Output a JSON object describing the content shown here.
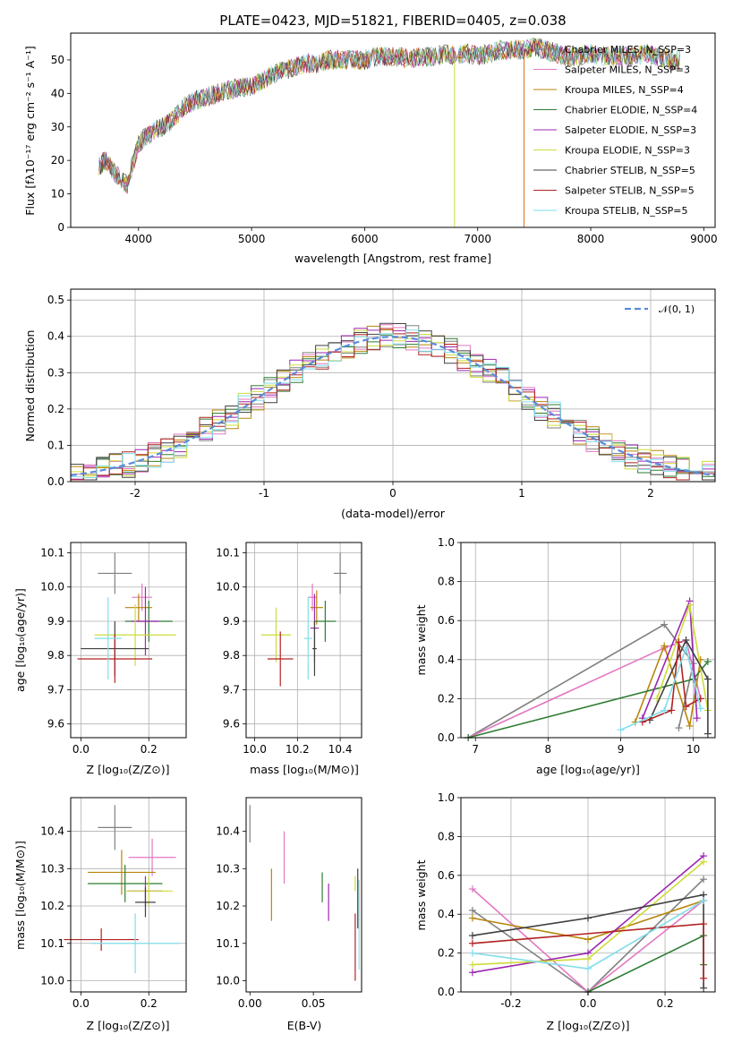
{
  "title": "PLATE=0423, MJD=51821, FIBERID=0405, z=0.038",
  "colors": [
    "#808080",
    "#e377c2",
    "#b8860b",
    "#2e7d32",
    "#9c27b0",
    "#cddc39",
    "#404040",
    "#b22222",
    "#80deea"
  ],
  "chart_data": [
    {
      "id": "spectrum",
      "type": "line",
      "xlabel": "wavelength [Angstrom, rest frame]",
      "ylabel": "Flux [fλ10⁻¹⁷ erg cm⁻² s⁻¹ A⁻¹]",
      "xlim": [
        3400,
        9100
      ],
      "ylim": [
        0,
        58
      ],
      "xticks": [
        4000,
        5000,
        6000,
        7000,
        8000,
        9000
      ],
      "yticks": [
        0,
        10,
        20,
        30,
        40,
        50
      ],
      "legend_position": "right",
      "series": [
        {
          "name": "Chabrier MILES, N_SSP=3"
        },
        {
          "name": "Salpeter MILES, N_SSP=3"
        },
        {
          "name": "Kroupa MILES, N_SSP=4"
        },
        {
          "name": "Chabrier ELODIE, N_SSP=4"
        },
        {
          "name": "Salpeter ELODIE, N_SSP=3"
        },
        {
          "name": "Kroupa ELODIE, N_SSP=3"
        },
        {
          "name": "Chabrier STELIB, N_SSP=5"
        },
        {
          "name": "Salpeter STELIB, N_SSP=5"
        },
        {
          "name": "Kroupa STELIB, N_SSP=5"
        }
      ],
      "x": [
        3650,
        3700,
        3800,
        3900,
        4000,
        4100,
        4200,
        4300,
        4400,
        4500,
        4600,
        4700,
        4800,
        4900,
        5000,
        5100,
        5200,
        5300,
        5400,
        5500,
        5600,
        5700,
        5800,
        5900,
        6000,
        6100,
        6200,
        6300,
        6400,
        6500,
        6600,
        6700,
        6800,
        6900,
        7000,
        7100,
        7200,
        7300,
        7400,
        7500,
        7600,
        7700,
        7800,
        7900,
        8000,
        8100,
        8200,
        8300,
        8400,
        8500,
        8600,
        8700,
        8800
      ],
      "y": [
        18,
        20,
        16,
        13,
        25,
        28,
        30,
        32,
        36,
        38,
        39,
        40,
        41,
        42,
        42,
        44,
        46,
        47,
        48,
        49,
        49,
        50,
        50,
        50,
        50,
        51,
        51,
        51,
        50,
        51,
        51,
        52,
        51,
        52,
        51,
        52,
        53,
        53,
        53,
        54,
        53,
        52,
        51,
        51,
        52,
        51,
        51,
        51,
        51,
        52,
        51,
        50,
        50
      ]
    },
    {
      "id": "residuals",
      "type": "histogram",
      "xlabel": "(data-model)/error",
      "ylabel": "Normed distribution",
      "xlim": [
        -2.5,
        2.5
      ],
      "ylim": [
        0,
        0.53
      ],
      "xticks": [
        -2,
        -1,
        0,
        1,
        2
      ],
      "yticks": [
        0.0,
        0.1,
        0.2,
        0.3,
        0.4,
        0.5
      ],
      "legend": "𝒩(0, 1)",
      "legend_position": "top-right",
      "grid": true
    },
    {
      "id": "age_vs_Z",
      "type": "scatter",
      "xlabel": "Z [log₁₀(Z/Z⊙)]",
      "ylabel": "age  [log₁₀(age/yr)]",
      "xlim": [
        -0.03,
        0.31
      ],
      "ylim": [
        9.56,
        10.13
      ],
      "xticks": [
        0.0,
        0.2
      ],
      "yticks": [
        9.6,
        9.7,
        9.8,
        9.9,
        10.0,
        10.1
      ],
      "points": [
        {
          "x": 0.1,
          "y": 10.04,
          "xerr": 0.05,
          "yerr": 0.06
        },
        {
          "x": 0.18,
          "y": 9.97,
          "xerr": 0.03,
          "yerr": 0.04
        },
        {
          "x": 0.17,
          "y": 9.94,
          "xerr": 0.04,
          "yerr": 0.04
        },
        {
          "x": 0.2,
          "y": 9.9,
          "xerr": 0.07,
          "yerr": 0.06
        },
        {
          "x": 0.19,
          "y": 9.9,
          "xerr": 0.04,
          "yerr": 0.1
        },
        {
          "x": 0.16,
          "y": 9.86,
          "xerr": 0.12,
          "yerr": 0.09
        },
        {
          "x": 0.1,
          "y": 9.82,
          "xerr": 0.1,
          "yerr": 0.08
        },
        {
          "x": 0.1,
          "y": 9.79,
          "xerr": 0.11,
          "yerr": 0.07
        },
        {
          "x": 0.08,
          "y": 9.85,
          "xerr": 0.04,
          "yerr": 0.12
        }
      ],
      "grid": true
    },
    {
      "id": "age_vs_mass",
      "type": "scatter",
      "xlabel": "mass [log₁₀(M/M⊙)]",
      "ylabel": "",
      "xlim": [
        9.96,
        10.5
      ],
      "ylim": [
        9.56,
        10.13
      ],
      "xticks": [
        10.0,
        10.2,
        10.4
      ],
      "yticks": [
        9.6,
        9.7,
        9.8,
        9.9,
        10.0,
        10.1
      ],
      "points": [
        {
          "x": 10.4,
          "y": 10.04,
          "xerr": 0.03,
          "yerr": 0.06
        },
        {
          "x": 10.27,
          "y": 9.97,
          "xerr": 0.02,
          "yerr": 0.04
        },
        {
          "x": 10.29,
          "y": 9.94,
          "xerr": 0.03,
          "yerr": 0.05
        },
        {
          "x": 10.33,
          "y": 9.9,
          "xerr": 0.05,
          "yerr": 0.06
        },
        {
          "x": 10.28,
          "y": 9.88,
          "xerr": 0.02,
          "yerr": 0.1
        },
        {
          "x": 10.1,
          "y": 9.86,
          "xerr": 0.07,
          "yerr": 0.08
        },
        {
          "x": 10.28,
          "y": 9.82,
          "xerr": 0.01,
          "yerr": 0.08
        },
        {
          "x": 10.12,
          "y": 9.79,
          "xerr": 0.06,
          "yerr": 0.08
        },
        {
          "x": 10.25,
          "y": 9.85,
          "xerr": 0.02,
          "yerr": 0.12
        }
      ],
      "grid": true
    },
    {
      "id": "mass_weight_vs_age",
      "type": "line",
      "xlabel": "age  [log₁₀(age/yr)]",
      "ylabel": "mass weight",
      "xlim": [
        6.8,
        10.3
      ],
      "ylim": [
        0,
        1.0
      ],
      "xticks": [
        7,
        8,
        9,
        10
      ],
      "yticks": [
        0.0,
        0.2,
        0.4,
        0.6,
        0.8,
        1.0
      ],
      "grid": true
    },
    {
      "id": "mass_vs_Z",
      "type": "scatter",
      "xlabel": "Z [log₁₀(Z/Z⊙)]",
      "ylabel": "mass [log₁₀(M/M⊙)]",
      "xlim": [
        -0.03,
        0.31
      ],
      "ylim": [
        9.97,
        10.49
      ],
      "xticks": [
        0.0,
        0.2
      ],
      "yticks": [
        10.0,
        10.1,
        10.2,
        10.3,
        10.4
      ],
      "points": [
        {
          "x": 0.1,
          "y": 10.41,
          "xerr": 0.05,
          "yerr": 0.06
        },
        {
          "x": 0.21,
          "y": 10.33,
          "xerr": 0.07,
          "yerr": 0.05
        },
        {
          "x": 0.12,
          "y": 10.29,
          "xerr": 0.1,
          "yerr": 0.06
        },
        {
          "x": 0.13,
          "y": 10.26,
          "xerr": 0.11,
          "yerr": 0.05
        },
        {
          "x": 0.19,
          "y": 10.24,
          "xerr": 0.05,
          "yerr": 0.04
        },
        {
          "x": 0.2,
          "y": 10.24,
          "xerr": 0.07,
          "yerr": 0.04
        },
        {
          "x": 0.19,
          "y": 10.21,
          "xerr": 0.03,
          "yerr": 0.04
        },
        {
          "x": 0.06,
          "y": 10.11,
          "xerr": 0.11,
          "yerr": 0.03
        },
        {
          "x": 0.16,
          "y": 10.1,
          "xerr": 0.13,
          "yerr": 0.08
        }
      ],
      "grid": true
    },
    {
      "id": "mass_vs_ebv",
      "type": "scatter",
      "xlabel": "E(B-V)",
      "ylabel": "",
      "xlim": [
        -0.003,
        0.088
      ],
      "ylim": [
        9.97,
        10.49
      ],
      "xticks": [
        0.0,
        0.05
      ],
      "yticks": [
        10.0,
        10.1,
        10.2,
        10.3,
        10.4
      ],
      "points": [
        {
          "x": 0.0,
          "y": 10.42,
          "yerr": 0.05
        },
        {
          "x": 0.027,
          "y": 10.33,
          "yerr": 0.07
        },
        {
          "x": 0.017,
          "y": 10.23,
          "yerr": 0.07
        },
        {
          "x": 0.057,
          "y": 10.25,
          "yerr": 0.04
        },
        {
          "x": 0.062,
          "y": 10.21,
          "yerr": 0.05
        },
        {
          "x": 0.083,
          "y": 10.26,
          "yerr": 0.02
        },
        {
          "x": 0.085,
          "y": 10.22,
          "yerr": 0.08
        },
        {
          "x": 0.083,
          "y": 10.09,
          "yerr": 0.09
        },
        {
          "x": 0.086,
          "y": 10.15,
          "yerr": 0.12
        }
      ],
      "grid": false
    },
    {
      "id": "mass_weight_vs_Z",
      "type": "line",
      "xlabel": "Z [log₁₀(Z/Z⊙)]",
      "ylabel": "mass weight",
      "xlim": [
        -0.33,
        0.33
      ],
      "ylim": [
        0,
        1.0
      ],
      "xticks": [
        -0.2,
        0.0,
        0.2
      ],
      "yticks": [
        0.0,
        0.2,
        0.4,
        0.6,
        0.8,
        1.0
      ],
      "grid": true
    }
  ]
}
